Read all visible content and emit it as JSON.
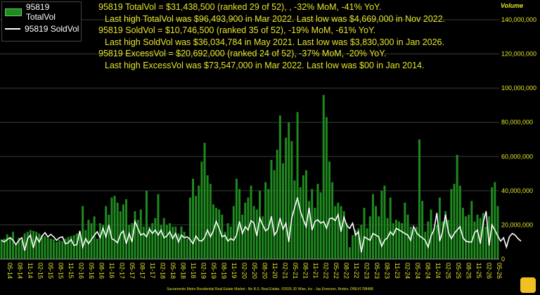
{
  "legend": {
    "bar_label": "95819 TotalVol",
    "line_label": "95819 SoldVol"
  },
  "notes": {
    "line1": "95819 TotalVol = $31,438,500 (ranked 29 of 52), , -32% MoM, -41% YoY.",
    "line2": "Last high TotalVol was $96,493,900 in Mar 2022. Last low was $4,669,000 in Nov 2022.",
    "line3": "95819 SoldVol = $10,746,500 (ranked 35 of 52), -19% MoM, -61% YoY.",
    "line4": "Last high SoldVol was $36,034,784 in May 2021. Last low was $3,830,300 in Jan 2026.",
    "line5": "95819 ExcessVol = $20,692,000 (ranked 24 of 52), -37% MoM, -20% YoY.",
    "line6": "Last high ExcessVol was $73,547,000 in Mar 2022. Last low was $00 in Jan 2014."
  },
  "y_axis_title": "Volume",
  "footer": "Sacramento Metro Residential Real Estate Market - No B.S. Real Estate, ©2026 JD Wise, Inc - Jay Emerson, Broker, DRE#1788488",
  "colors": {
    "bar": "#1f8a1f",
    "line": "#ffffff",
    "text": "#e6e62a",
    "background": "#000000"
  },
  "chart_data": {
    "type": "bar",
    "title": "",
    "ylim": [
      0,
      140000000
    ],
    "yticks": [
      0,
      20000000,
      40000000,
      60000000,
      80000000,
      100000000,
      120000000,
      140000000
    ],
    "ytick_labels": [
      "0",
      "20,000,000",
      "40,000,000",
      "60,000,000",
      "80,000,000",
      "100,000,000",
      "120,000,000",
      "140,000,000"
    ],
    "x_tick_labels": [
      "05-14",
      "08-14",
      "11-14",
      "02-15",
      "05-15",
      "08-15",
      "11-15",
      "02-16",
      "05-16",
      "08-16",
      "11-16",
      "02-17",
      "05-17",
      "08-17",
      "11-17",
      "02-18",
      "05-18",
      "08-18",
      "11-18",
      "02-19",
      "05-19",
      "08-19",
      "11-19",
      "02-20",
      "05-20",
      "08-20",
      "11-20",
      "02-21",
      "05-21",
      "08-21",
      "11-21",
      "02-22",
      "05-22",
      "08-22",
      "11-22",
      "02-23",
      "05-23",
      "08-23",
      "11-23",
      "02-24",
      "05-24",
      "08-24",
      "11-24",
      "02-25",
      "05-25",
      "08-25",
      "11-25",
      "02-26",
      "05-26"
    ],
    "series": [
      {
        "name": "95819 TotalVol",
        "kind": "bar",
        "values": [
          11500000,
          12000000,
          14500000,
          13000000,
          16000000,
          9000000,
          12500000,
          11000000,
          15000000,
          16000000,
          17000000,
          16500000,
          16000000,
          15000000,
          14000000,
          13500000,
          12500000,
          12000000,
          11500000,
          10000000,
          11000000,
          10500000,
          12000000,
          13000000,
          13500000,
          14000000,
          15000000,
          16000000,
          31000000,
          17000000,
          23000000,
          21000000,
          25000000,
          12000000,
          21000000,
          20000000,
          31000000,
          26000000,
          36000000,
          37000000,
          33000000,
          28000000,
          32000000,
          35000000,
          20000000,
          21000000,
          28000000,
          23000000,
          29000000,
          19000000,
          40000000,
          19000000,
          21000000,
          24000000,
          38000000,
          20000000,
          24000000,
          20000000,
          21000000,
          19000000,
          19000000,
          15000000,
          19000000,
          16000000,
          12000000,
          36000000,
          47000000,
          37000000,
          43000000,
          57000000,
          68000000,
          49000000,
          44000000,
          32000000,
          30000000,
          29000000,
          26000000,
          16000000,
          21000000,
          19000000,
          31000000,
          47000000,
          41000000,
          26000000,
          33000000,
          36000000,
          43000000,
          31000000,
          29000000,
          40000000,
          25000000,
          45000000,
          41000000,
          58000000,
          52000000,
          64000000,
          84000000,
          56000000,
          71000000,
          80000000,
          69000000,
          46000000,
          86000000,
          42000000,
          49000000,
          52000000,
          34000000,
          41000000,
          30000000,
          44000000,
          39000000,
          96000000,
          83000000,
          57000000,
          45000000,
          31000000,
          33000000,
          31000000,
          28000000,
          21000000,
          7000000,
          14000000,
          17000000,
          18000000,
          20000000,
          30000000,
          18000000,
          25000000,
          38000000,
          31000000,
          25000000,
          40000000,
          43000000,
          24000000,
          36000000,
          21000000,
          23000000,
          22000000,
          21000000,
          33000000,
          26000000,
          19000000,
          17000000,
          19000000,
          70000000,
          34000000,
          16000000,
          22000000,
          29000000,
          18000000,
          20000000,
          36000000,
          22000000,
          28000000,
          23000000,
          41000000,
          44000000,
          61000000,
          43000000,
          30000000,
          25000000,
          26000000,
          34000000,
          22000000,
          26000000,
          24000000,
          27000000,
          19000000,
          25000000,
          42000000,
          45000000,
          31000000
        ]
      },
      {
        "name": "95819 SoldVol",
        "kind": "line",
        "values": [
          11000000,
          10000000,
          11500000,
          12500000,
          11000000,
          8500000,
          11000000,
          12500000,
          5000000,
          12000000,
          14000000,
          6500000,
          13000000,
          10000000,
          13500000,
          15500000,
          13000000,
          14500000,
          13000000,
          11000000,
          12500000,
          13000000,
          9000000,
          9500000,
          11500000,
          8000000,
          8500000,
          16500000,
          7000000,
          12000000,
          9000000,
          11500000,
          14000000,
          16000000,
          12500000,
          18000000,
          13000000,
          20000000,
          12000000,
          11000000,
          9500000,
          14500000,
          16500000,
          9000000,
          15000000,
          10000000,
          22000000,
          18000000,
          14000000,
          15000000,
          13000000,
          17500000,
          15000000,
          17000000,
          14000000,
          17000000,
          12500000,
          13500000,
          16000000,
          12000000,
          15000000,
          10000000,
          14000000,
          12500000,
          13000000,
          11500000,
          9000000,
          13500000,
          11000000,
          10500000,
          12500000,
          17000000,
          13000000,
          16500000,
          22000000,
          18000000,
          13000000,
          14000000,
          10500000,
          12000000,
          11000000,
          14000000,
          22000000,
          15000000,
          19000000,
          17000000,
          22500000,
          21000000,
          13500000,
          24000000,
          20000000,
          16500000,
          18000000,
          25000000,
          14000000,
          16500000,
          24000000,
          17500000,
          21000000,
          10000000,
          24000000,
          30000000,
          36000000,
          28000000,
          23000000,
          19000000,
          30000000,
          17000000,
          22000000,
          23000000,
          21000000,
          22000000,
          18000000,
          23500000,
          24000000,
          22500000,
          26000000,
          16000000,
          24500000,
          19500000,
          18000000,
          21000000,
          14000000,
          16000000,
          4000000,
          13000000,
          12000000,
          11000000,
          15000000,
          14000000,
          13000000,
          7500000,
          11000000,
          12500000,
          16000000,
          14000000,
          18000000,
          17000000,
          16000000,
          15000000,
          14000000,
          11000000,
          19000000,
          15500000,
          13500000,
          12500000,
          11000000,
          7000000,
          13500000,
          17000000,
          27000000,
          10500000,
          16000000,
          26000000,
          15500000,
          12000000,
          15000000,
          17000000,
          19000000,
          12500000,
          10500000,
          10000000,
          10000000,
          15500000,
          17000000,
          9000000,
          21500000,
          28000000,
          8000000,
          20000000,
          17000000,
          13500000,
          10500000,
          12500000,
          7000000,
          13000000,
          15000000,
          14000000,
          12000000,
          10500000
        ]
      }
    ],
    "legend_position": "top-left",
    "grid": true
  }
}
